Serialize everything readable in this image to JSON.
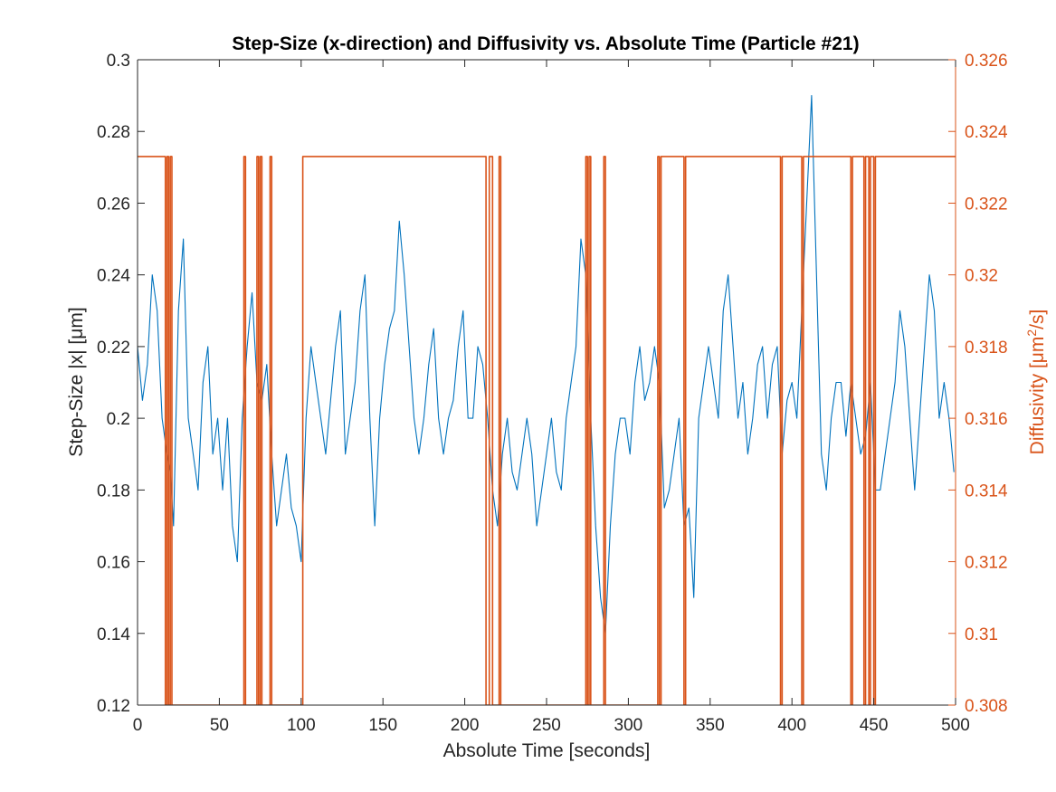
{
  "chart_data": {
    "type": "line",
    "title": "Step-Size (x-direction) and Diffusivity vs. Absolute Time (Particle #21)",
    "xlabel": "Absolute Time [seconds]",
    "ylabel_left": "Step-Size |x| [μm]",
    "ylabel_right_prefix": "Diffusivity [μm",
    "ylabel_right_sup": "2",
    "ylabel_right_suffix": "/s]",
    "xlim": [
      0,
      500
    ],
    "ylim_left": [
      0.12,
      0.3
    ],
    "ylim_right": [
      0.308,
      0.326
    ],
    "x_ticks": [
      "0",
      "50",
      "100",
      "150",
      "200",
      "250",
      "300",
      "350",
      "400",
      "450",
      "500"
    ],
    "y_left_ticks": [
      "0.12",
      "0.14",
      "0.16",
      "0.18",
      "0.2",
      "0.22",
      "0.24",
      "0.26",
      "0.28",
      "0.3"
    ],
    "y_right_ticks": [
      "0.308",
      "0.31",
      "0.312",
      "0.314",
      "0.316",
      "0.318",
      "0.32",
      "0.322",
      "0.324",
      "0.326"
    ],
    "grid": false,
    "legend": "none",
    "series": [
      {
        "axis": "left",
        "color": "#0072BD",
        "x": [
          0,
          3,
          6,
          9,
          12,
          15,
          18,
          20,
          22,
          25,
          28,
          31,
          34,
          37,
          40,
          43,
          46,
          49,
          52,
          55,
          58,
          61,
          64,
          67,
          70,
          73,
          76,
          79,
          82,
          85,
          88,
          91,
          94,
          97,
          100,
          103,
          106,
          109,
          112,
          115,
          118,
          121,
          124,
          127,
          130,
          133,
          136,
          139,
          142,
          145,
          148,
          151,
          154,
          157,
          160,
          163,
          166,
          169,
          172,
          175,
          178,
          181,
          184,
          187,
          190,
          193,
          196,
          199,
          202,
          205,
          208,
          211,
          214,
          217,
          220,
          223,
          226,
          229,
          232,
          235,
          238,
          241,
          244,
          247,
          250,
          253,
          256,
          259,
          262,
          265,
          268,
          271,
          274,
          277,
          280,
          283,
          286,
          289,
          292,
          295,
          298,
          301,
          304,
          307,
          310,
          313,
          316,
          319,
          322,
          325,
          328,
          331,
          334,
          337,
          340,
          343,
          346,
          349,
          352,
          355,
          358,
          361,
          364,
          367,
          370,
          373,
          376,
          379,
          382,
          385,
          388,
          391,
          394,
          397,
          400,
          403,
          406,
          409,
          412,
          415,
          418,
          421,
          424,
          427,
          430,
          433,
          436,
          439,
          442,
          445,
          448,
          451,
          454,
          457,
          460,
          463,
          466,
          469,
          472,
          475,
          478,
          481,
          484,
          487,
          490,
          493,
          496,
          499
        ],
        "values": [
          0.22,
          0.205,
          0.215,
          0.24,
          0.23,
          0.2,
          0.19,
          0.185,
          0.17,
          0.23,
          0.25,
          0.2,
          0.19,
          0.18,
          0.21,
          0.22,
          0.19,
          0.2,
          0.18,
          0.2,
          0.17,
          0.16,
          0.2,
          0.22,
          0.235,
          0.21,
          0.205,
          0.215,
          0.19,
          0.17,
          0.18,
          0.19,
          0.175,
          0.17,
          0.16,
          0.2,
          0.22,
          0.21,
          0.2,
          0.19,
          0.205,
          0.22,
          0.23,
          0.19,
          0.2,
          0.21,
          0.23,
          0.24,
          0.2,
          0.17,
          0.2,
          0.215,
          0.225,
          0.23,
          0.255,
          0.24,
          0.22,
          0.2,
          0.19,
          0.2,
          0.215,
          0.225,
          0.2,
          0.19,
          0.2,
          0.205,
          0.22,
          0.23,
          0.2,
          0.2,
          0.22,
          0.215,
          0.2,
          0.18,
          0.17,
          0.19,
          0.2,
          0.185,
          0.18,
          0.19,
          0.2,
          0.19,
          0.17,
          0.18,
          0.19,
          0.2,
          0.185,
          0.18,
          0.2,
          0.21,
          0.22,
          0.25,
          0.24,
          0.2,
          0.17,
          0.15,
          0.14,
          0.17,
          0.19,
          0.2,
          0.2,
          0.19,
          0.21,
          0.22,
          0.205,
          0.21,
          0.22,
          0.21,
          0.175,
          0.18,
          0.19,
          0.2,
          0.17,
          0.175,
          0.15,
          0.2,
          0.21,
          0.22,
          0.21,
          0.2,
          0.23,
          0.24,
          0.22,
          0.2,
          0.21,
          0.19,
          0.2,
          0.215,
          0.22,
          0.2,
          0.215,
          0.22,
          0.19,
          0.205,
          0.21,
          0.2,
          0.23,
          0.26,
          0.29,
          0.24,
          0.19,
          0.18,
          0.2,
          0.21,
          0.21,
          0.195,
          0.21,
          0.2,
          0.19,
          0.195,
          0.21,
          0.18,
          0.18,
          0.19,
          0.2,
          0.21,
          0.23,
          0.22,
          0.2,
          0.18,
          0.2,
          0.22,
          0.24,
          0.23,
          0.2,
          0.21,
          0.2,
          0.185
        ]
      },
      {
        "axis": "right",
        "color": "#D95319",
        "x": [
          0,
          17,
          17,
          18,
          18,
          19,
          19,
          20,
          20,
          21,
          21,
          65,
          65,
          66,
          66,
          73,
          73,
          74,
          74,
          75,
          75,
          76,
          76,
          81,
          81,
          82,
          82,
          83,
          83,
          101,
          101,
          213,
          213,
          215,
          215,
          217,
          217,
          221,
          221,
          222,
          222,
          223,
          223,
          274,
          274,
          275,
          275,
          276,
          276,
          277,
          277,
          285,
          285,
          286,
          286,
          287,
          287,
          318,
          318,
          319,
          319,
          320,
          320,
          334,
          334,
          335,
          335,
          337,
          337,
          393,
          393,
          394,
          394,
          406,
          406,
          407,
          407,
          436,
          436,
          437,
          437,
          444,
          444,
          445,
          445,
          447,
          447,
          448,
          448,
          450,
          450,
          451,
          451,
          500
        ],
        "values": [
          0.3233,
          0.3233,
          0.308,
          0.308,
          0.3233,
          0.3233,
          0.308,
          0.308,
          0.3233,
          0.3233,
          0.308,
          0.308,
          0.3233,
          0.3233,
          0.308,
          0.308,
          0.3233,
          0.3233,
          0.308,
          0.308,
          0.3233,
          0.3233,
          0.308,
          0.308,
          0.3233,
          0.3233,
          0.308,
          0.308,
          0.308,
          0.308,
          0.3233,
          0.3233,
          0.308,
          0.308,
          0.3233,
          0.3233,
          0.308,
          0.308,
          0.3233,
          0.3233,
          0.308,
          0.308,
          0.308,
          0.308,
          0.3233,
          0.3233,
          0.308,
          0.308,
          0.3233,
          0.3233,
          0.308,
          0.308,
          0.3233,
          0.3233,
          0.308,
          0.308,
          0.308,
          0.308,
          0.3233,
          0.3233,
          0.308,
          0.308,
          0.3233,
          0.3233,
          0.308,
          0.308,
          0.3233,
          0.3233,
          0.3233,
          0.3233,
          0.308,
          0.308,
          0.3233,
          0.3233,
          0.308,
          0.308,
          0.3233,
          0.3233,
          0.308,
          0.308,
          0.3233,
          0.3233,
          0.308,
          0.308,
          0.3233,
          0.3233,
          0.308,
          0.308,
          0.3233,
          0.3233,
          0.308,
          0.308,
          0.3233,
          0.3233
        ]
      }
    ]
  }
}
